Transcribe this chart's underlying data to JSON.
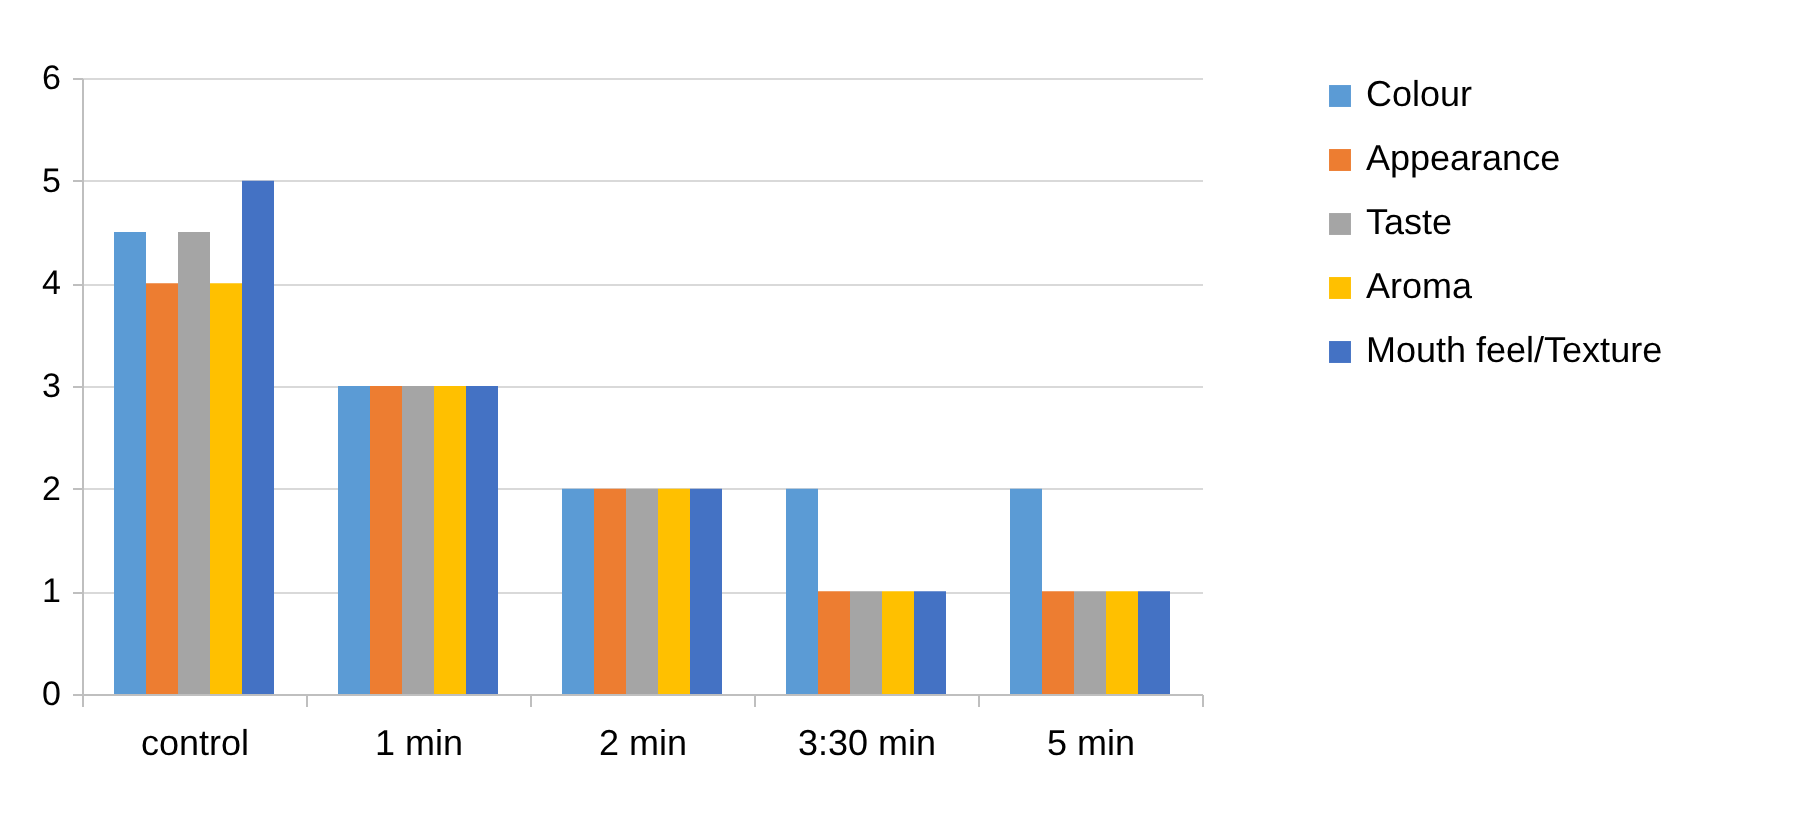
{
  "chart_data": {
    "type": "bar",
    "categories": [
      "control",
      "1 min",
      "2 min",
      "3:30 min",
      "5 min"
    ],
    "series": [
      {
        "name": "Colour",
        "color": "#5b9bd5",
        "values": [
          4.5,
          3,
          2,
          2,
          2
        ]
      },
      {
        "name": "Appearance",
        "color": "#ed7d31",
        "values": [
          4,
          3,
          2,
          1,
          1
        ]
      },
      {
        "name": "Taste",
        "color": "#a5a5a5",
        "values": [
          4.5,
          3,
          2,
          1,
          1
        ]
      },
      {
        "name": "Aroma",
        "color": "#ffc000",
        "values": [
          4,
          3,
          2,
          1,
          1
        ]
      },
      {
        "name": "Mouth feel/Texture",
        "color": "#4472c4",
        "values": [
          5,
          3,
          2,
          1,
          1
        ]
      }
    ],
    "ylim": [
      0,
      6
    ],
    "yticks": [
      0,
      1,
      2,
      3,
      4,
      5,
      6
    ],
    "grid": "y",
    "legend": "right"
  }
}
